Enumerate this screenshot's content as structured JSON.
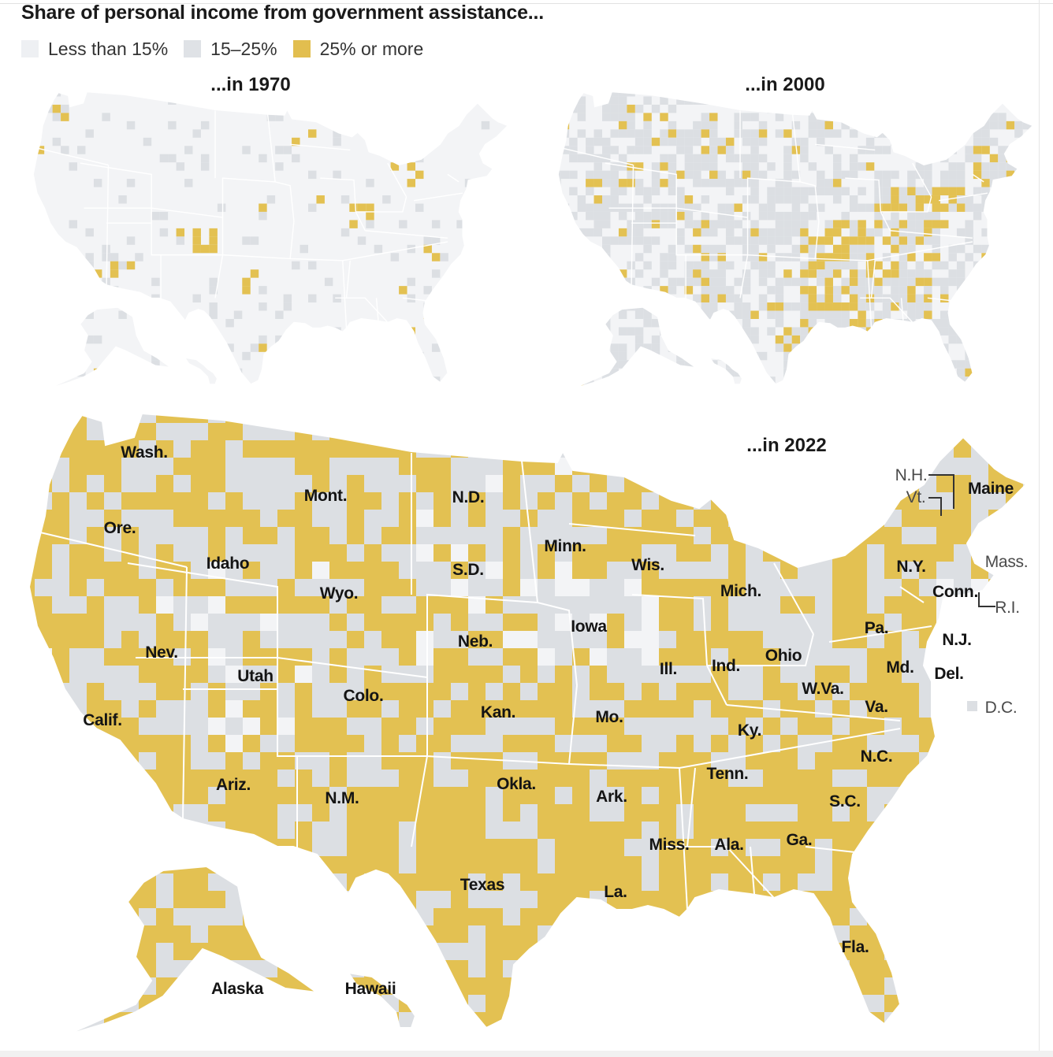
{
  "title": "Share of personal income from government assistance...",
  "legend": [
    {
      "label": "Less than 15%",
      "color": "#eef0f3"
    },
    {
      "label": "15–25%",
      "color": "#dfe2e6"
    },
    {
      "label": "25% or more",
      "color": "#e2be4f"
    }
  ],
  "colors": {
    "low": "#f3f4f6",
    "mid": "#dcdfe3",
    "high": "#e3c152",
    "border": "#ffffff"
  },
  "maps": {
    "m1970": {
      "title": "...in 1970"
    },
    "m2000": {
      "title": "...in 2000"
    },
    "m2022": {
      "title": "...in 2022"
    }
  },
  "states": {
    "wash": "Wash.",
    "ore": "Ore.",
    "calif": "Calif.",
    "idaho": "Idaho",
    "nev": "Nev.",
    "mont": "Mont.",
    "wyo": "Wyo.",
    "utah": "Utah",
    "ariz": "Ariz.",
    "colo": "Colo.",
    "nm": "N.M.",
    "nd": "N.D.",
    "sd": "S.D.",
    "neb": "Neb.",
    "kan": "Kan.",
    "okla": "Okla.",
    "texas": "Texas",
    "minn": "Minn.",
    "iowa": "Iowa",
    "mo": "Mo.",
    "ark": "Ark.",
    "la": "La.",
    "wis": "Wis.",
    "ill": "Ill.",
    "mich": "Mich.",
    "ind": "Ind.",
    "ohio": "Ohio",
    "ky": "Ky.",
    "tenn": "Tenn.",
    "miss": "Miss.",
    "ala": "Ala.",
    "ga": "Ga.",
    "fla": "Fla.",
    "sc": "S.C.",
    "nc": "N.C.",
    "va": "Va.",
    "wva": "W.Va.",
    "pa": "Pa.",
    "ny": "N.Y.",
    "md": "Md.",
    "del": "Del.",
    "nj": "N.J.",
    "conn": "Conn.",
    "ri": "R.I.",
    "mass": "Mass.",
    "vt": "Vt.",
    "nh": "N.H.",
    "maine": "Maine",
    "dc": "D.C.",
    "alaska": "Alaska",
    "hawaii": "Hawaii"
  }
}
